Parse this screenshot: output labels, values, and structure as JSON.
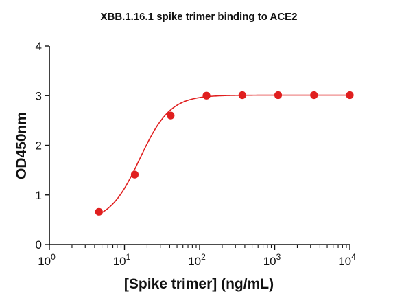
{
  "chart_data": {
    "type": "scatter",
    "title": "XBB.1.16.1 spike trimer binding to ACE2",
    "xlabel": "[Spike trimer] (ng/mL)",
    "ylabel": "OD450nm",
    "x_scale": "log",
    "xlim": [
      1,
      10000
    ],
    "ylim": [
      0,
      4
    ],
    "x_ticks": [
      {
        "base": "10",
        "exp": "0",
        "value": 1
      },
      {
        "base": "10",
        "exp": "1",
        "value": 10
      },
      {
        "base": "10",
        "exp": "2",
        "value": 100
      },
      {
        "base": "10",
        "exp": "3",
        "value": 1000
      },
      {
        "base": "10",
        "exp": "4",
        "value": 10000
      }
    ],
    "y_ticks": [
      "0",
      "1",
      "2",
      "3",
      "4"
    ],
    "grid": false,
    "series": [
      {
        "color": "#e01f1f",
        "fit": "sigmoidal four-parameter logistic curve",
        "points": [
          {
            "x": 4.57,
            "y": 0.66
          },
          {
            "x": 13.7,
            "y": 1.41
          },
          {
            "x": 41.2,
            "y": 2.6
          },
          {
            "x": 123.5,
            "y": 3.0
          },
          {
            "x": 370.4,
            "y": 3.01
          },
          {
            "x": 1111,
            "y": 3.01
          },
          {
            "x": 3333,
            "y": 3.01
          },
          {
            "x": 10000,
            "y": 3.01
          }
        ]
      }
    ]
  }
}
